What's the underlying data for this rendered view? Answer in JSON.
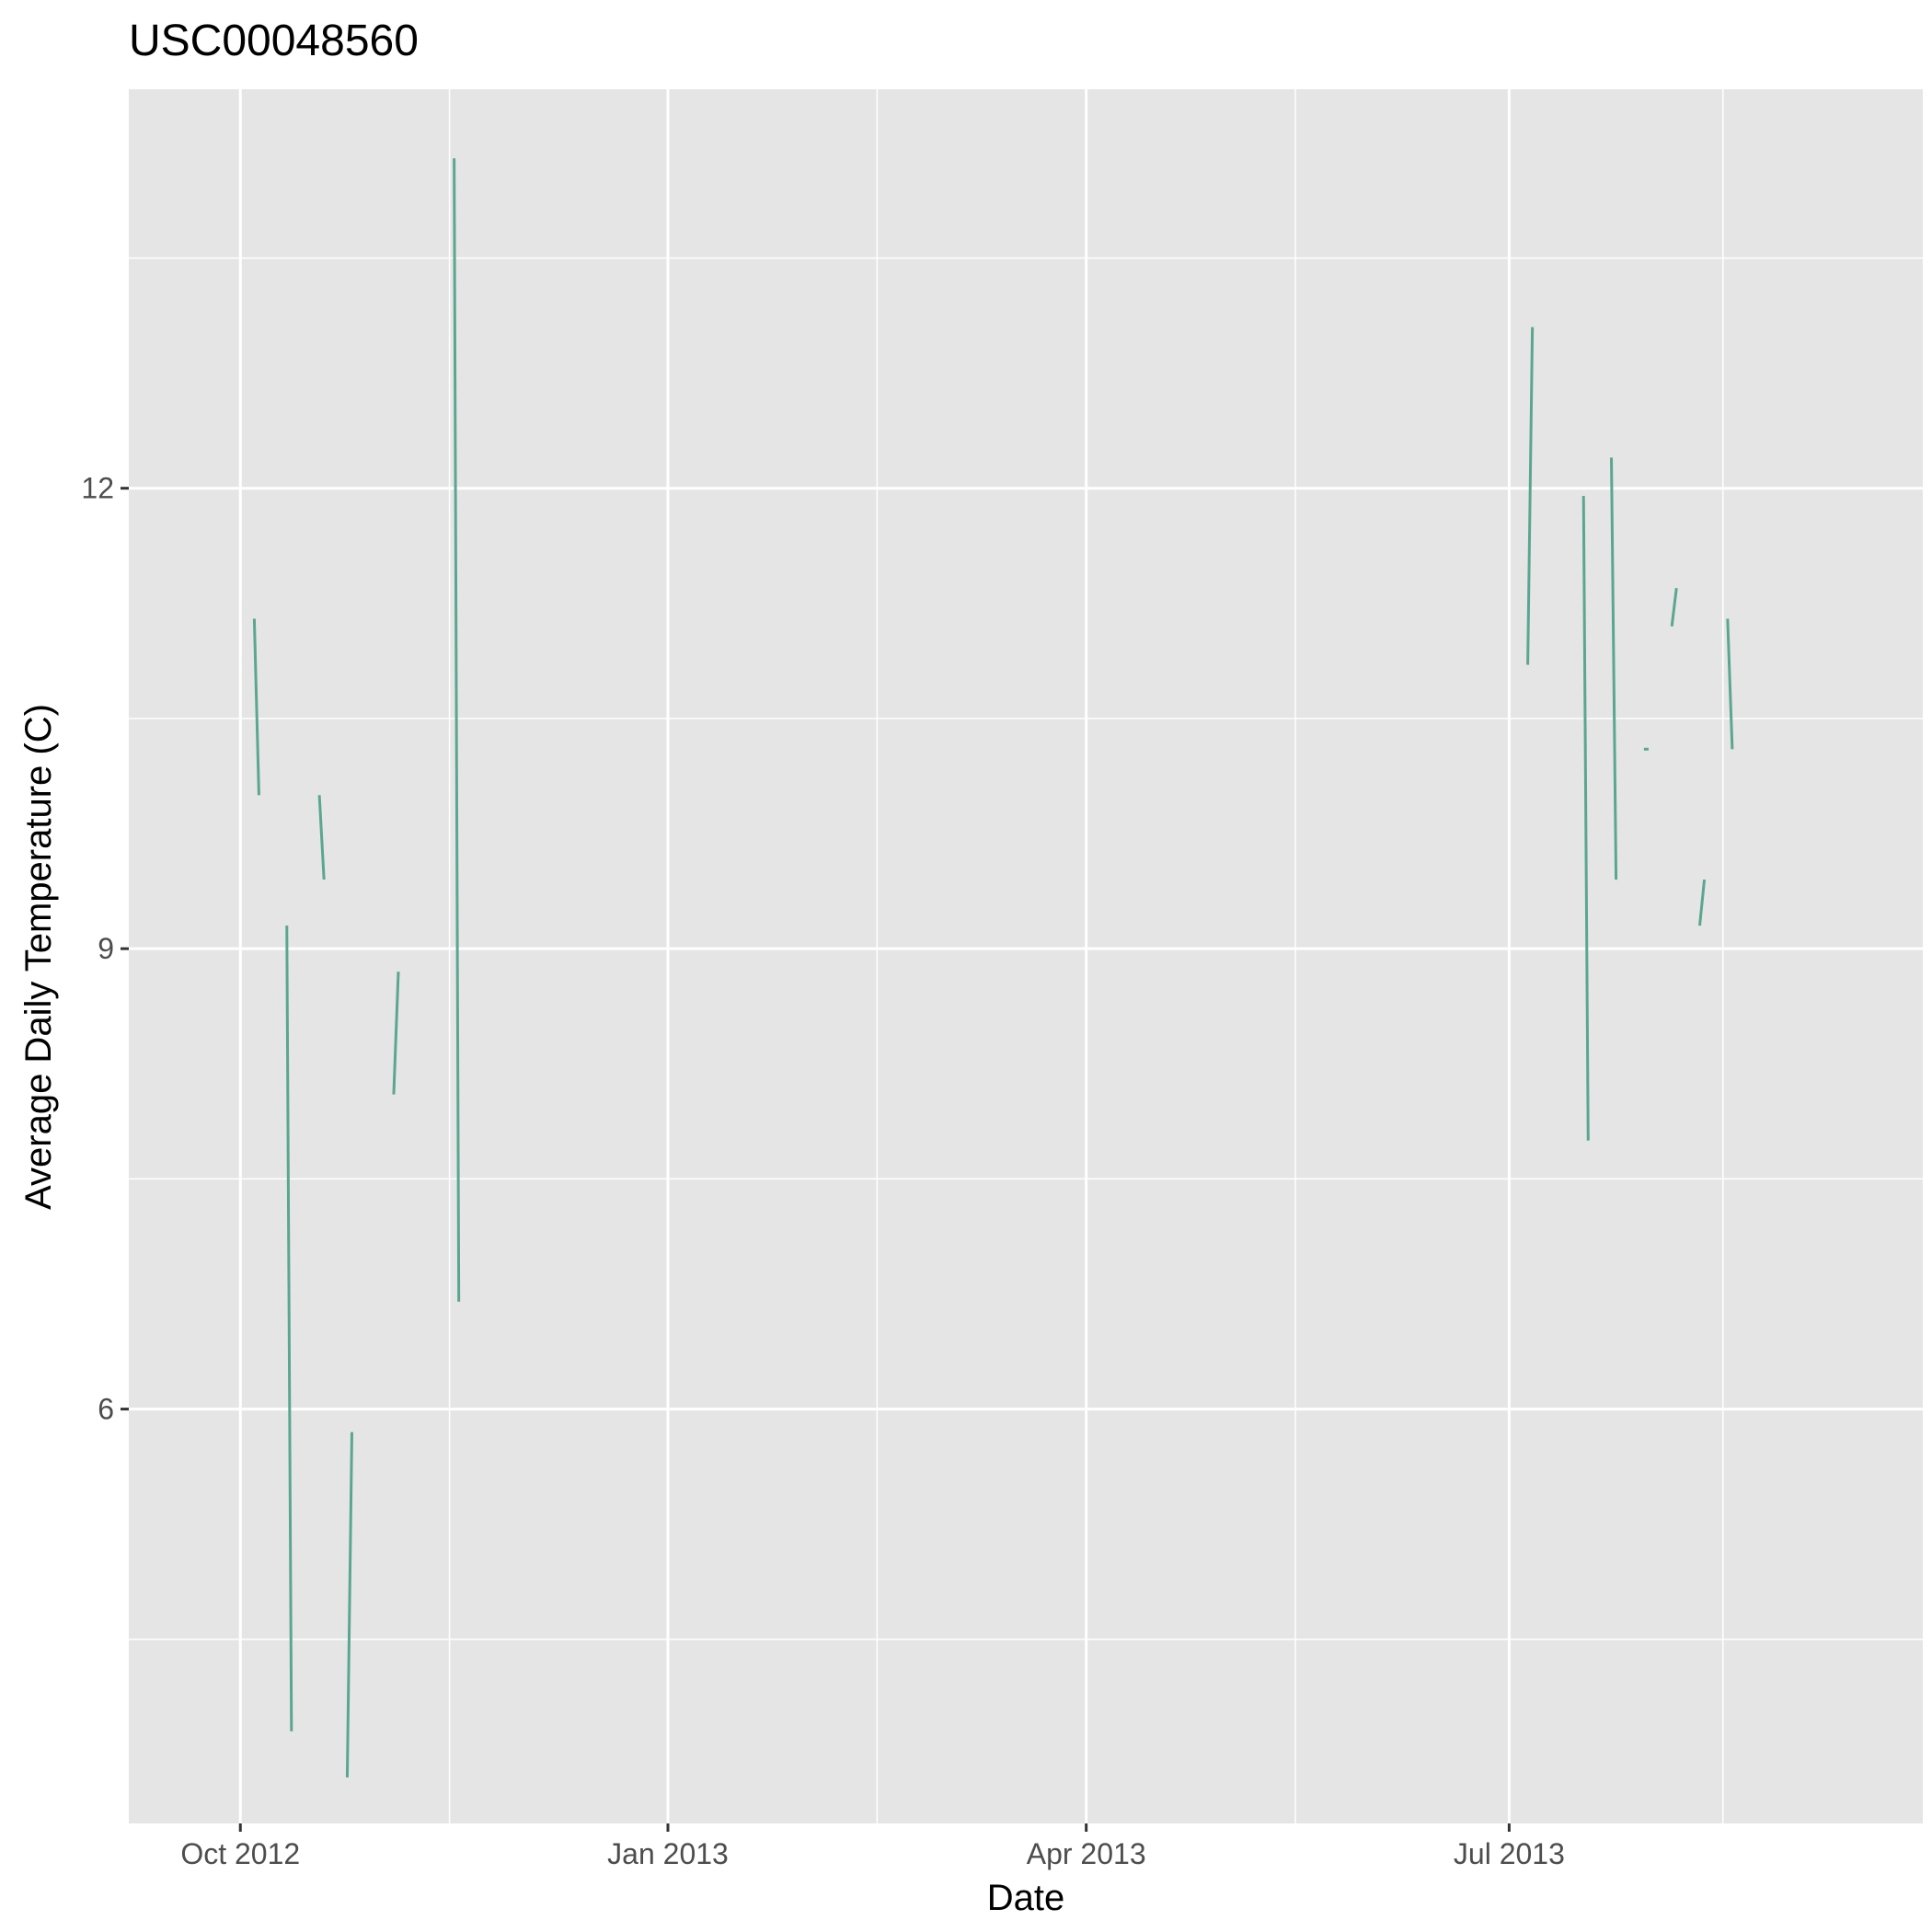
{
  "chart_data": {
    "type": "line",
    "title": "USC00048560",
    "xlabel": "Date",
    "ylabel": "Average Daily Temperature (C)",
    "x_type": "date",
    "xlim": [
      "2012-09-07",
      "2013-09-28"
    ],
    "ylim": [
      3.3,
      14.6
    ],
    "x_ticks": [
      {
        "date": "2012-10-01",
        "label": "Oct 2012"
      },
      {
        "date": "2013-01-01",
        "label": "Jan 2013"
      },
      {
        "date": "2013-04-01",
        "label": "Apr 2013"
      },
      {
        "date": "2013-07-01",
        "label": "Jul 2013"
      }
    ],
    "x_minor_ticks": [
      "2012-11-15",
      "2013-02-15",
      "2013-05-16",
      "2013-08-16"
    ],
    "y_ticks": [
      6,
      9,
      12
    ],
    "y_minor_ticks": [
      4.5,
      7.5,
      10.5,
      13.5
    ],
    "grid": true,
    "background": "#e5e5e5",
    "grid_color": "#ffffff",
    "series": [
      {
        "color": "#5aa690",
        "segments": [
          [
            [
              "2012-10-04",
              11.15
            ],
            [
              "2012-10-05",
              10.0
            ]
          ],
          [
            [
              "2012-10-11",
              9.15
            ],
            [
              "2012-10-12",
              3.9
            ]
          ],
          [
            [
              "2012-10-18",
              10.0
            ],
            [
              "2012-10-19",
              9.45
            ]
          ],
          [
            [
              "2012-10-24",
              3.6
            ],
            [
              "2012-10-25",
              5.85
            ]
          ],
          [
            [
              "2012-11-03",
              8.05
            ],
            [
              "2012-11-04",
              8.85
            ]
          ],
          [
            [
              "2012-11-16",
              14.15
            ],
            [
              "2012-11-17",
              6.7
            ]
          ],
          [
            [
              "2013-07-05",
              10.85
            ],
            [
              "2013-07-06",
              13.05
            ]
          ],
          [
            [
              "2013-07-17",
              11.95
            ],
            [
              "2013-07-18",
              7.75
            ]
          ],
          [
            [
              "2013-07-23",
              12.2
            ],
            [
              "2013-07-24",
              9.45
            ]
          ],
          [
            [
              "2013-07-30",
              10.3
            ],
            [
              "2013-07-31",
              10.3
            ]
          ],
          [
            [
              "2013-08-05",
              11.1
            ],
            [
              "2013-08-06",
              11.35
            ]
          ],
          [
            [
              "2013-08-11",
              9.15
            ],
            [
              "2013-08-12",
              9.45
            ]
          ],
          [
            [
              "2013-08-17",
              11.15
            ],
            [
              "2013-08-18",
              10.3
            ]
          ]
        ]
      }
    ]
  }
}
